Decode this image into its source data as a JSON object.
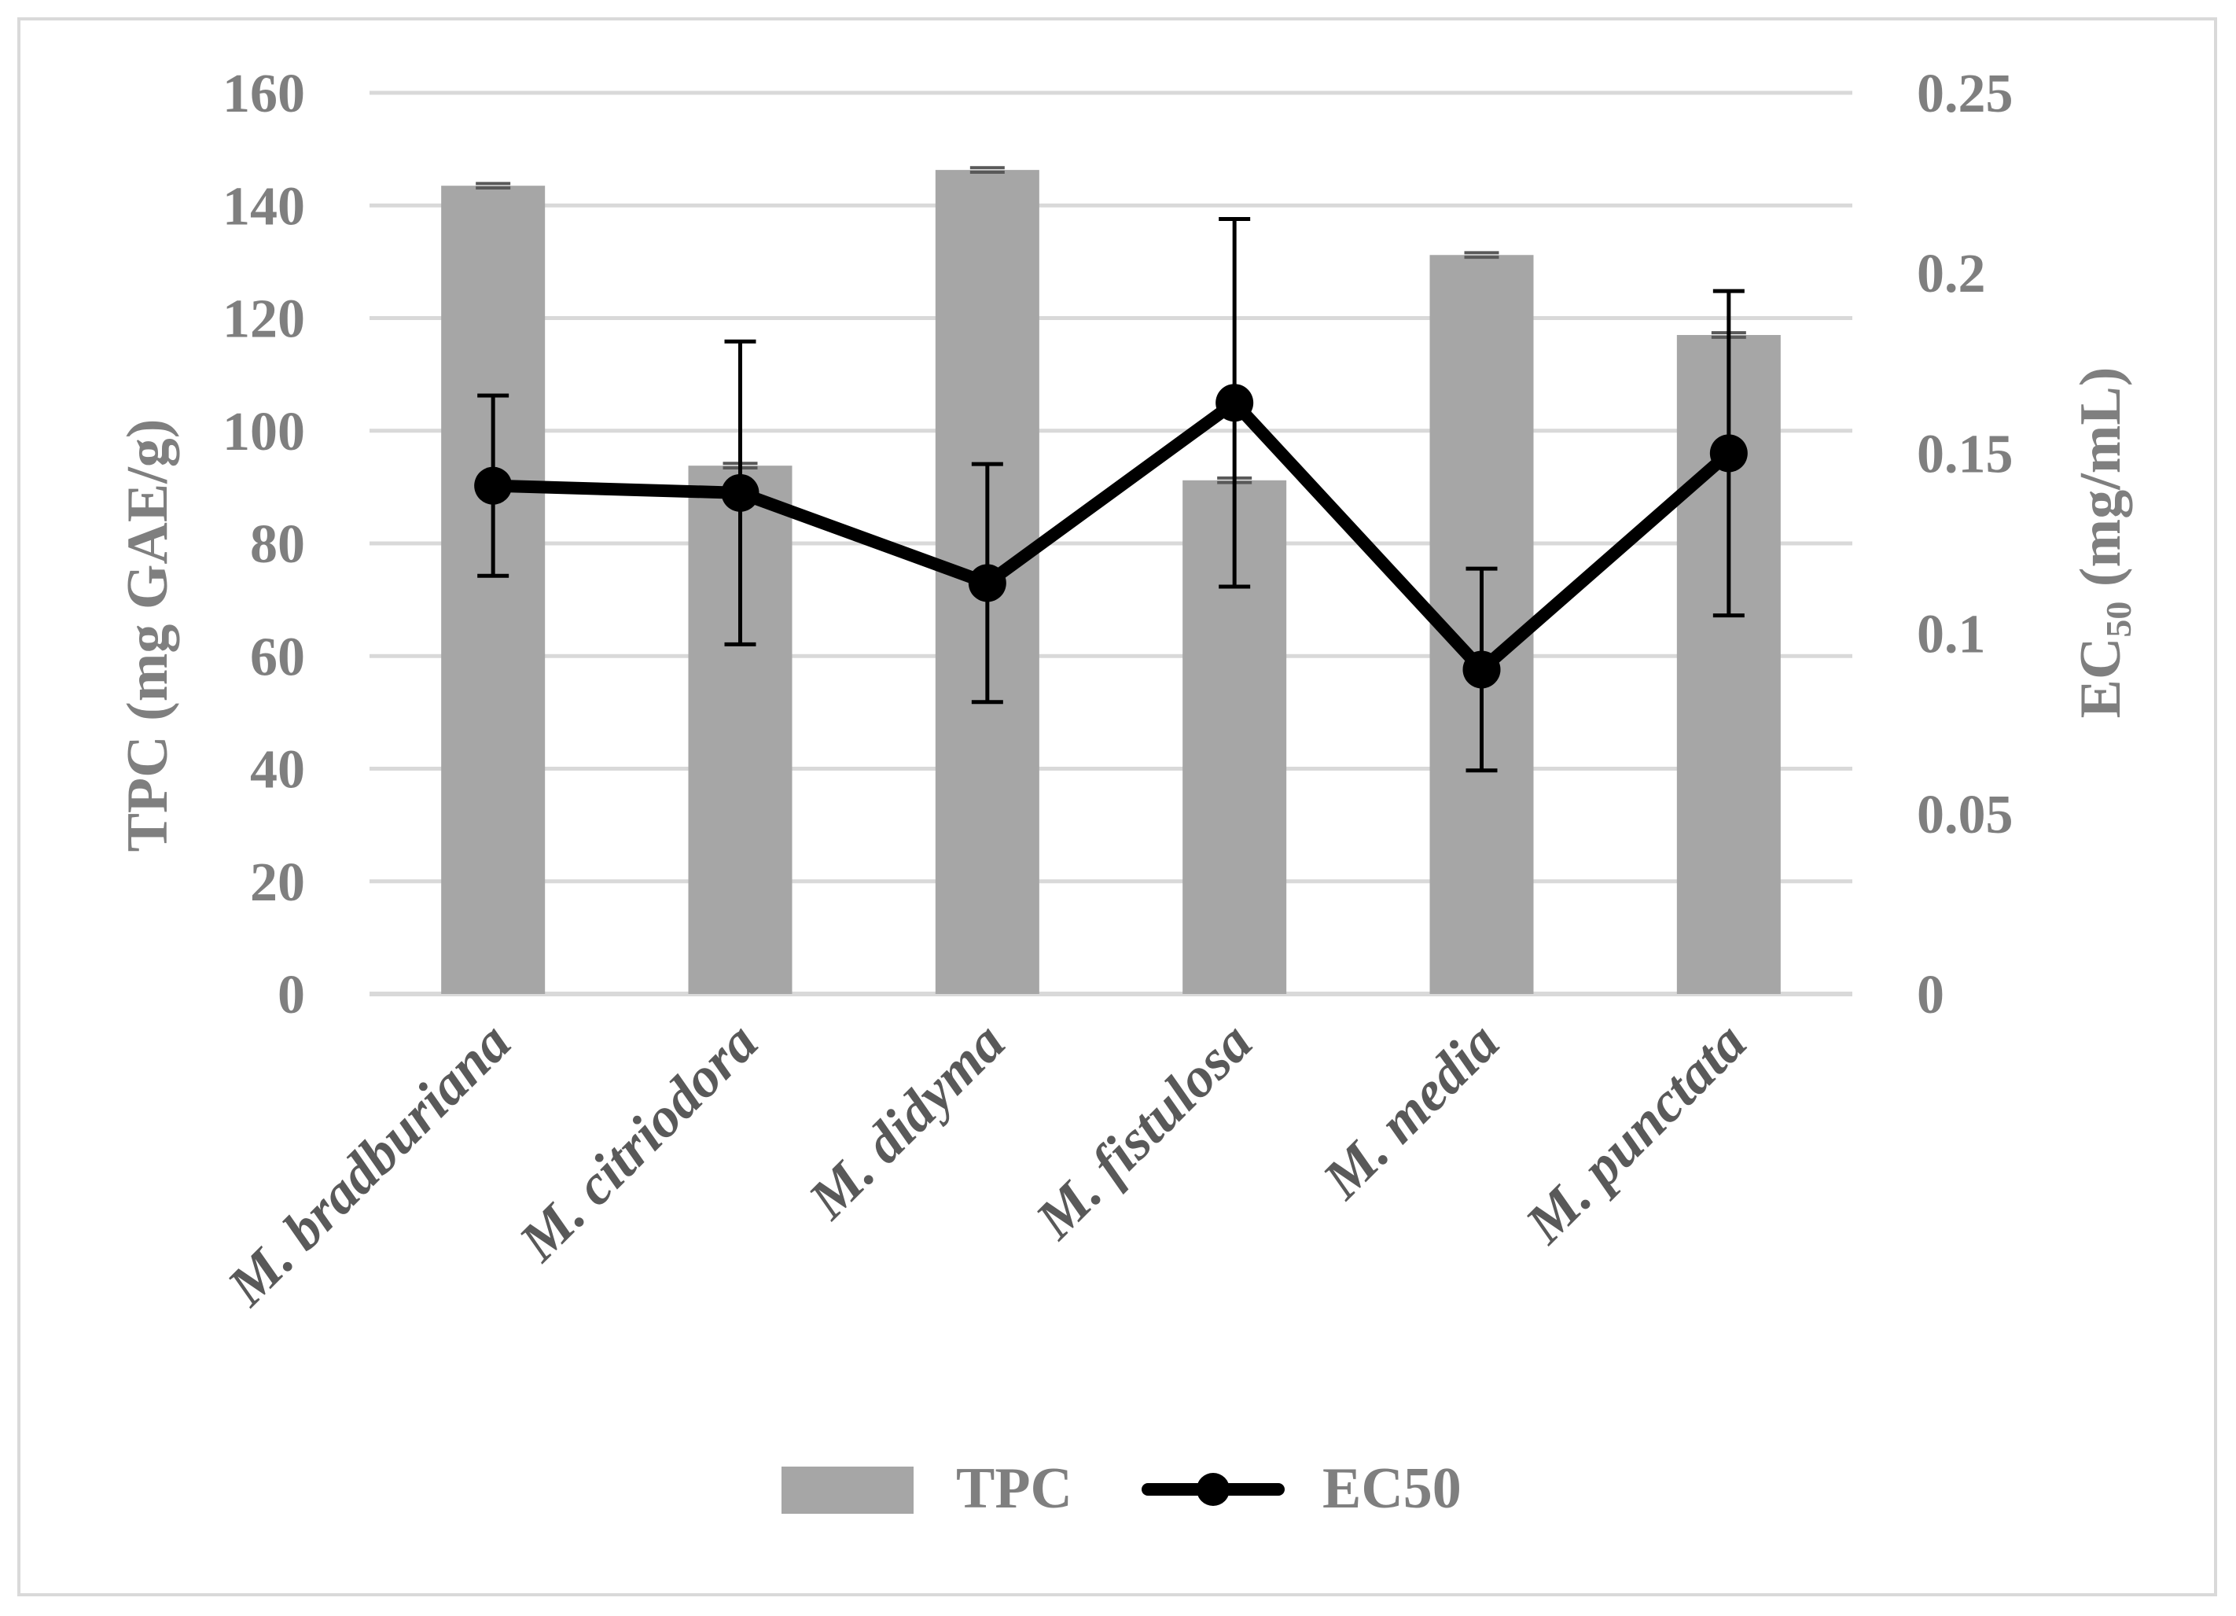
{
  "chart_data": {
    "type": "bar",
    "categories": [
      "M. bradburiana",
      "M. citriodora",
      "M. didyma",
      "M. fistulosa",
      "M. media",
      "M. punctata"
    ],
    "series": [
      {
        "name": "TPC",
        "kind": "bar",
        "axis": "left",
        "color": "#a6a6a6",
        "values": [
          143.5,
          93.8,
          146.3,
          91.2,
          131.2,
          117.0
        ],
        "errors": [
          0.4,
          0.4,
          0.4,
          0.4,
          0.4,
          0.4
        ]
      },
      {
        "name": "EC50",
        "kind": "line",
        "axis": "right",
        "color": "#000000",
        "values": [
          0.141,
          0.139,
          0.114,
          0.164,
          0.09,
          0.15
        ],
        "errors": [
          0.025,
          0.042,
          0.033,
          0.051,
          0.028,
          0.045
        ]
      }
    ],
    "y_left": {
      "label_main": "TPC (mg GAE/g)",
      "ylim": [
        0,
        160
      ],
      "ticks": [
        "0",
        "20",
        "40",
        "60",
        "80",
        "100",
        "120",
        "140",
        "160"
      ],
      "tick_values": [
        0,
        20,
        40,
        60,
        80,
        100,
        120,
        140,
        160
      ]
    },
    "y_right": {
      "label_main": "EC",
      "label_sub": "50",
      "label_unit": " (mg/mL)",
      "ylim": [
        0,
        0.25
      ],
      "ticks": [
        "0",
        "0.05",
        "0.1",
        "0.15",
        "0.2",
        "0.25"
      ],
      "tick_values": [
        0,
        0.05,
        0.1,
        0.15,
        0.2,
        0.25
      ]
    },
    "grid": true,
    "legend": {
      "position": "bottom",
      "entries": [
        "TPC",
        "EC50"
      ]
    },
    "colors": {
      "bar": "#a6a6a6",
      "line": "#000000",
      "grid": "#d9d9d9",
      "tick_text": "#7f7f7f",
      "category_text": "#595959"
    }
  }
}
